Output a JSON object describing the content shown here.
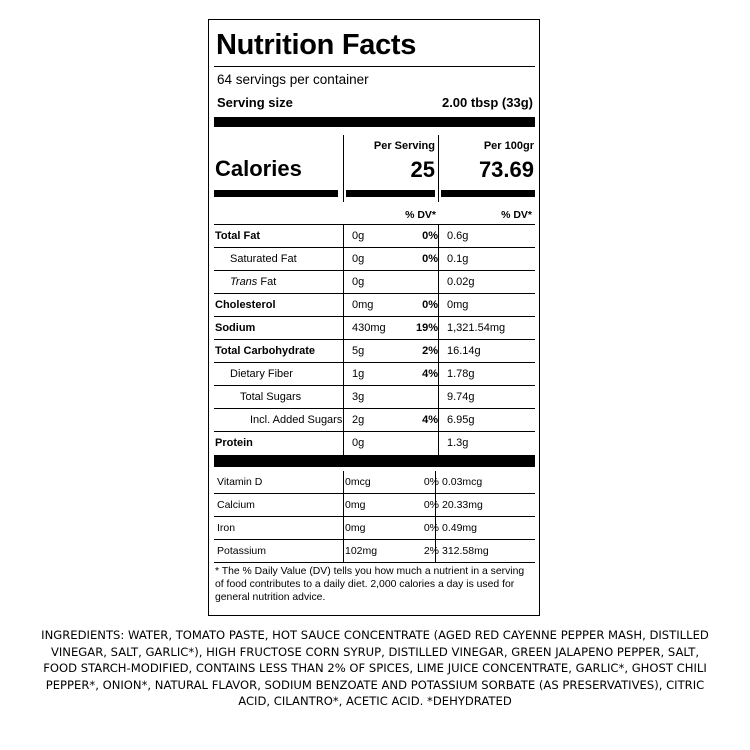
{
  "label": {
    "title": "Nutrition Facts",
    "servings_per_container": "64 servings per container",
    "serving_size_label": "Serving size",
    "serving_size_value": "2.00 tbsp (33g)",
    "col_per_serving": "Per Serving",
    "col_per_100": "Per 100gr",
    "calories_label": "Calories",
    "calories_per_serving": "25",
    "calories_per_100": "73.69",
    "dv_header": "% DV*",
    "nutrients": [
      {
        "name": "Total Fat",
        "amount": "0g",
        "dv": "0%",
        "per100": "0.6g"
      },
      {
        "name": "Saturated Fat",
        "amount": "0g",
        "dv": "0%",
        "per100": "0.1g"
      },
      {
        "name_italic": "Trans",
        "name_rest": " Fat",
        "amount": "0g",
        "dv": "",
        "per100": "0.02g"
      },
      {
        "name": "Cholesterol",
        "amount": "0mg",
        "dv": "0%",
        "per100": "0mg"
      },
      {
        "name": "Sodium",
        "amount": "430mg",
        "dv": "19%",
        "per100": "1,321.54mg"
      },
      {
        "name": "Total Carbohydrate",
        "amount": "5g",
        "dv": "2%",
        "per100": "16.14g"
      },
      {
        "name": "Dietary Fiber",
        "amount": "1g",
        "dv": "4%",
        "per100": "1.78g"
      },
      {
        "name": "Total Sugars",
        "amount": "3g",
        "dv": "",
        "per100": "9.74g"
      },
      {
        "name": "Incl. Added Sugars",
        "amount": "2g",
        "dv": "4%",
        "per100": "6.95g"
      },
      {
        "name": "Protein",
        "amount": "0g",
        "dv": "",
        "per100": "1.3g"
      }
    ],
    "vitamins": [
      {
        "name": "Vitamin D",
        "amount": "0mcg",
        "dv": "0%",
        "per100": "0.03mcg"
      },
      {
        "name": "Calcium",
        "amount": "0mg",
        "dv": "0%",
        "per100": "20.33mg"
      },
      {
        "name": "Iron",
        "amount": "0mg",
        "dv": "0%",
        "per100": "0.49mg"
      },
      {
        "name": "Potassium",
        "amount": "102mg",
        "dv": "2%",
        "per100": "312.58mg"
      }
    ],
    "footnote": "* The % Daily Value (DV) tells you how much a nutrient in a serving of food contributes to a daily diet. 2,000 calories a day is used for general nutrition advice."
  },
  "ingredients": {
    "line1": "INGREDIENTS: WATER, TOMATO PASTE, HOT SAUCE CONCENTRATE (AGED RED CAYENNE PEPPER MASH, DISTILLED",
    "line2": "VINEGAR, SALT, GARLIC*), HIGH FRUCTOSE CORN SYRUP, DISTILLED VINEGAR, GREEN JALAPENO PEPPER, SALT,",
    "line3": "FOOD STARCH-MODIFIED, CONTAINS LESS THAN 2% OF SPICES, LIME JUICE CONCENTRATE, GARLIC*, GHOST CHILI",
    "line4": "PEPPER*, ONION*, NATURAL FLAVOR, SODIUM BENZOATE AND POTASSIUM SORBATE (AS PRESERVATIVES), CITRIC",
    "line5": "ACID, CILANTRO*, ACETIC ACID. *DEHYDRATED"
  }
}
